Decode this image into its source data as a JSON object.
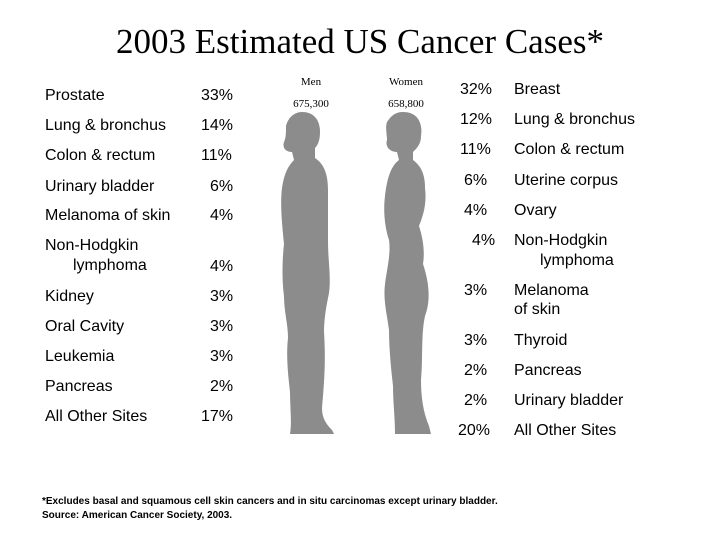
{
  "title": "2003 Estimated US Cancer Cases*",
  "men": {
    "heading": "Men",
    "total": "675,300",
    "items": [
      {
        "label": "Prostate",
        "pct": "33%"
      },
      {
        "label": "Lung & bronchus",
        "pct": "14%"
      },
      {
        "label": "Colon & rectum",
        "pct": "11%"
      },
      {
        "label": "Urinary bladder",
        "pct": "6%"
      },
      {
        "label": "Melanoma of skin",
        "pct": "4%"
      },
      {
        "label_line1": "Non-Hodgkin",
        "label_line2": "lymphoma",
        "pct": "4%"
      },
      {
        "label": "Kidney",
        "pct": "3%"
      },
      {
        "label": "Oral Cavity",
        "pct": "3%"
      },
      {
        "label": "Leukemia",
        "pct": "3%"
      },
      {
        "label": "Pancreas",
        "pct": "2%"
      },
      {
        "label": "All Other Sites",
        "pct": "17%"
      }
    ]
  },
  "women": {
    "heading": "Women",
    "total": "658,800",
    "items": [
      {
        "label": "Breast",
        "pct": "32%"
      },
      {
        "label": "Lung & bronchus",
        "pct": "12%"
      },
      {
        "label": "Colon & rectum",
        "pct": "11%"
      },
      {
        "label": "Uterine corpus",
        "pct": "6%"
      },
      {
        "label": "Ovary",
        "pct": "4%"
      },
      {
        "label_line1": "Non-Hodgkin",
        "label_line2": "lymphoma",
        "pct": "4%"
      },
      {
        "label_line1": "Melanoma",
        "label_line2": "of skin",
        "pct": "3%"
      },
      {
        "label": "Thyroid",
        "pct": "3%"
      },
      {
        "label": "Pancreas",
        "pct": "2%"
      },
      {
        "label": "Urinary bladder",
        "pct": "2%"
      },
      {
        "label": "All Other Sites",
        "pct": "20%"
      }
    ]
  },
  "footnote": {
    "line1": "*Excludes basal and squamous cell skin cancers and in situ carcinomas except urinary bladder.",
    "line2": "Source: American Cancer Society, 2003."
  },
  "colors": {
    "silhouette": "#8c8c8c",
    "text": "#000000",
    "background": "#ffffff"
  }
}
